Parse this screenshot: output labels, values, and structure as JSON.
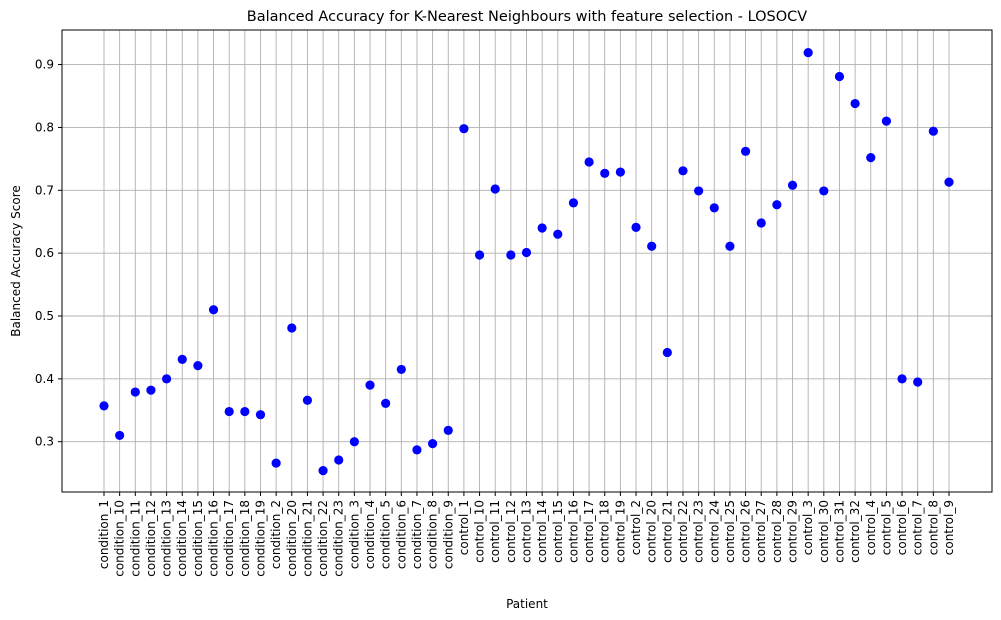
{
  "chart_data": {
    "type": "scatter",
    "title": "Balanced Accuracy for K-Nearest Neighbours with feature selection - LOSOCV",
    "xlabel": "Patient",
    "ylabel": "Balanced Accuracy Score",
    "ylim": [
      0.22,
      0.955
    ],
    "yticks": [
      0.3,
      0.4,
      0.5,
      0.6,
      0.7,
      0.8,
      0.9
    ],
    "ytick_labels": [
      "0.3",
      "0.4",
      "0.5",
      "0.6",
      "0.7",
      "0.8",
      "0.9"
    ],
    "grid": true,
    "marker_color": "#0000ff",
    "categories": [
      "condition_1",
      "condition_10",
      "condition_11",
      "condition_12",
      "condition_13",
      "condition_14",
      "condition_15",
      "condition_16",
      "condition_17",
      "condition_18",
      "condition_19",
      "condition_2",
      "condition_20",
      "condition_21",
      "condition_22",
      "condition_23",
      "condition_3",
      "condition_4",
      "condition_5",
      "condition_6",
      "condition_7",
      "condition_8",
      "condition_9",
      "control_1",
      "control_10",
      "control_11",
      "control_12",
      "control_13",
      "control_14",
      "control_15",
      "control_16",
      "control_17",
      "control_18",
      "control_19",
      "control_2",
      "control_20",
      "control_21",
      "control_22",
      "control_23",
      "control_24",
      "control_25",
      "control_26",
      "control_27",
      "control_28",
      "control_29",
      "control_3",
      "control_30",
      "control_31",
      "control_32",
      "control_4",
      "control_5",
      "control_6",
      "control_7",
      "control_8",
      "control_9"
    ],
    "values": [
      0.357,
      0.31,
      0.379,
      0.382,
      0.4,
      0.431,
      0.421,
      0.51,
      0.348,
      0.348,
      0.343,
      0.266,
      0.481,
      0.366,
      0.254,
      0.271,
      0.3,
      0.39,
      0.361,
      0.415,
      0.287,
      0.297,
      0.318,
      0.798,
      0.597,
      0.702,
      0.597,
      0.601,
      0.64,
      0.63,
      0.68,
      0.745,
      0.727,
      0.729,
      0.641,
      0.611,
      0.442,
      0.731,
      0.699,
      0.672,
      0.611,
      0.762,
      0.648,
      0.677,
      0.708,
      0.919,
      0.699,
      0.881,
      0.838,
      0.752,
      0.81,
      0.4,
      0.395,
      0.794,
      0.713
    ]
  }
}
